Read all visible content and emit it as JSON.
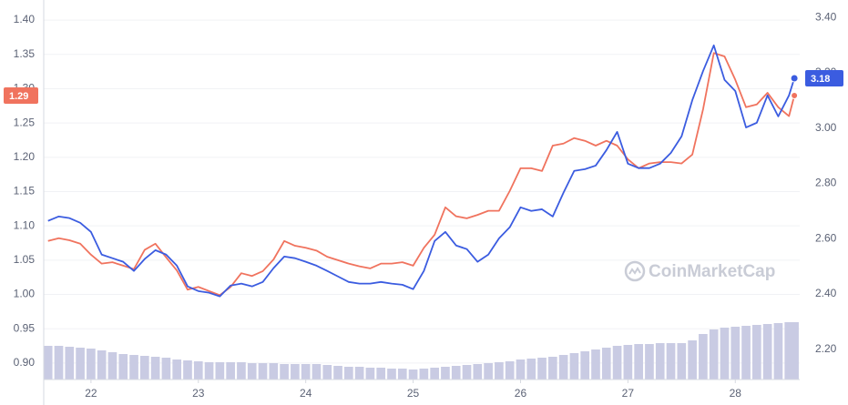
{
  "chart_data": {
    "type": "line",
    "x": [
      21.6,
      21.7,
      21.8,
      21.9,
      22.0,
      22.1,
      22.2,
      22.3,
      22.4,
      22.5,
      22.6,
      22.7,
      22.8,
      22.9,
      23.0,
      23.1,
      23.2,
      23.3,
      23.4,
      23.5,
      23.6,
      23.7,
      23.8,
      23.9,
      24.0,
      24.1,
      24.2,
      24.3,
      24.4,
      24.5,
      24.6,
      24.7,
      24.8,
      24.9,
      25.0,
      25.1,
      25.2,
      25.3,
      25.4,
      25.5,
      25.6,
      25.7,
      25.8,
      25.9,
      26.0,
      26.1,
      26.2,
      26.3,
      26.4,
      26.5,
      26.6,
      26.7,
      26.8,
      26.9,
      27.0,
      27.1,
      27.2,
      27.3,
      27.4,
      27.5,
      27.6,
      27.7,
      27.8,
      27.9,
      28.0,
      28.1,
      28.2,
      28.3,
      28.4,
      28.5,
      28.55
    ],
    "xlim": [
      21.56,
      28.6
    ],
    "xticks": [
      22,
      23,
      24,
      25,
      26,
      27,
      28
    ],
    "ylim": [
      0.88,
      1.42
    ],
    "yticks": [
      {
        "value": 0.9,
        "label": "0.90"
      },
      0.95,
      {
        "value": 1.0,
        "label": "1.00"
      },
      1.05,
      {
        "value": 1.1,
        "label": "1.10"
      },
      1.15,
      {
        "value": 1.2,
        "label": "1.20"
      },
      1.25,
      {
        "value": 1.3,
        "label": "1.30"
      },
      1.35,
      {
        "value": 1.4,
        "label": "1.40"
      }
    ],
    "y2lim": [
      2.1,
      3.44
    ],
    "y2ticks": [
      {
        "value": 2.2,
        "label": "2.20"
      },
      {
        "value": 2.4,
        "label": "2.40"
      },
      {
        "value": 2.6,
        "label": "2.60"
      },
      {
        "value": 2.8,
        "label": "2.80"
      },
      {
        "value": 3.0,
        "label": "3.00"
      },
      {
        "value": 3.2,
        "label": "3.20"
      },
      {
        "value": 3.4,
        "label": "3.40"
      }
    ],
    "grid": true,
    "series": [
      {
        "color": "#f0735e",
        "axis": "y",
        "last_label": "1.29",
        "values": [
          1.078,
          1.082,
          1.079,
          1.074,
          1.058,
          1.045,
          1.047,
          1.042,
          1.037,
          1.065,
          1.074,
          1.054,
          1.035,
          1.007,
          1.011,
          1.005,
          0.999,
          1.011,
          1.031,
          1.027,
          1.034,
          1.051,
          1.078,
          1.071,
          1.068,
          1.064,
          1.055,
          1.05,
          1.045,
          1.041,
          1.038,
          1.045,
          1.045,
          1.047,
          1.042,
          1.068,
          1.087,
          1.127,
          1.114,
          1.111,
          1.116,
          1.122,
          1.122,
          1.151,
          1.184,
          1.184,
          1.18,
          1.217,
          1.22,
          1.228,
          1.224,
          1.217,
          1.224,
          1.217,
          1.197,
          1.184,
          1.191,
          1.193,
          1.193,
          1.191,
          1.204,
          1.27,
          1.352,
          1.347,
          1.313,
          1.273,
          1.277,
          1.294,
          1.273,
          1.26,
          1.29
        ]
      },
      {
        "color": "#3b5ce0",
        "axis": "y2",
        "last_label": "3.18",
        "values": [
          2.664,
          2.68,
          2.674,
          2.657,
          2.624,
          2.542,
          2.529,
          2.516,
          2.483,
          2.526,
          2.558,
          2.542,
          2.502,
          2.427,
          2.41,
          2.404,
          2.391,
          2.43,
          2.437,
          2.427,
          2.443,
          2.493,
          2.535,
          2.529,
          2.516,
          2.502,
          2.483,
          2.463,
          2.443,
          2.437,
          2.437,
          2.443,
          2.437,
          2.433,
          2.417,
          2.483,
          2.591,
          2.624,
          2.575,
          2.562,
          2.516,
          2.542,
          2.601,
          2.641,
          2.713,
          2.7,
          2.706,
          2.68,
          2.766,
          2.845,
          2.851,
          2.864,
          2.92,
          2.986,
          2.871,
          2.855,
          2.855,
          2.871,
          2.91,
          2.97,
          3.101,
          3.206,
          3.299,
          3.174,
          3.134,
          3.002,
          3.019,
          3.118,
          3.042,
          3.118,
          3.18
        ]
      }
    ],
    "volume": {
      "color": "#c9cbe3",
      "ylim": [
        0,
        100
      ],
      "values": [
        37,
        37,
        36,
        35,
        34,
        32,
        30,
        28,
        27,
        26,
        25,
        24,
        22,
        21,
        20,
        19,
        19,
        19,
        19,
        18,
        18,
        18,
        17,
        17,
        17,
        17,
        16,
        15,
        14,
        14,
        13,
        13,
        12,
        12,
        11,
        12,
        13,
        14,
        15,
        16,
        17,
        18,
        19,
        20,
        22,
        23,
        24,
        25,
        27,
        29,
        31,
        33,
        35,
        37,
        38,
        39,
        39,
        40,
        40,
        40,
        43,
        50,
        55,
        57,
        58,
        59,
        60,
        61,
        62,
        63,
        63
      ]
    },
    "watermark": "CoinMarketCap"
  }
}
